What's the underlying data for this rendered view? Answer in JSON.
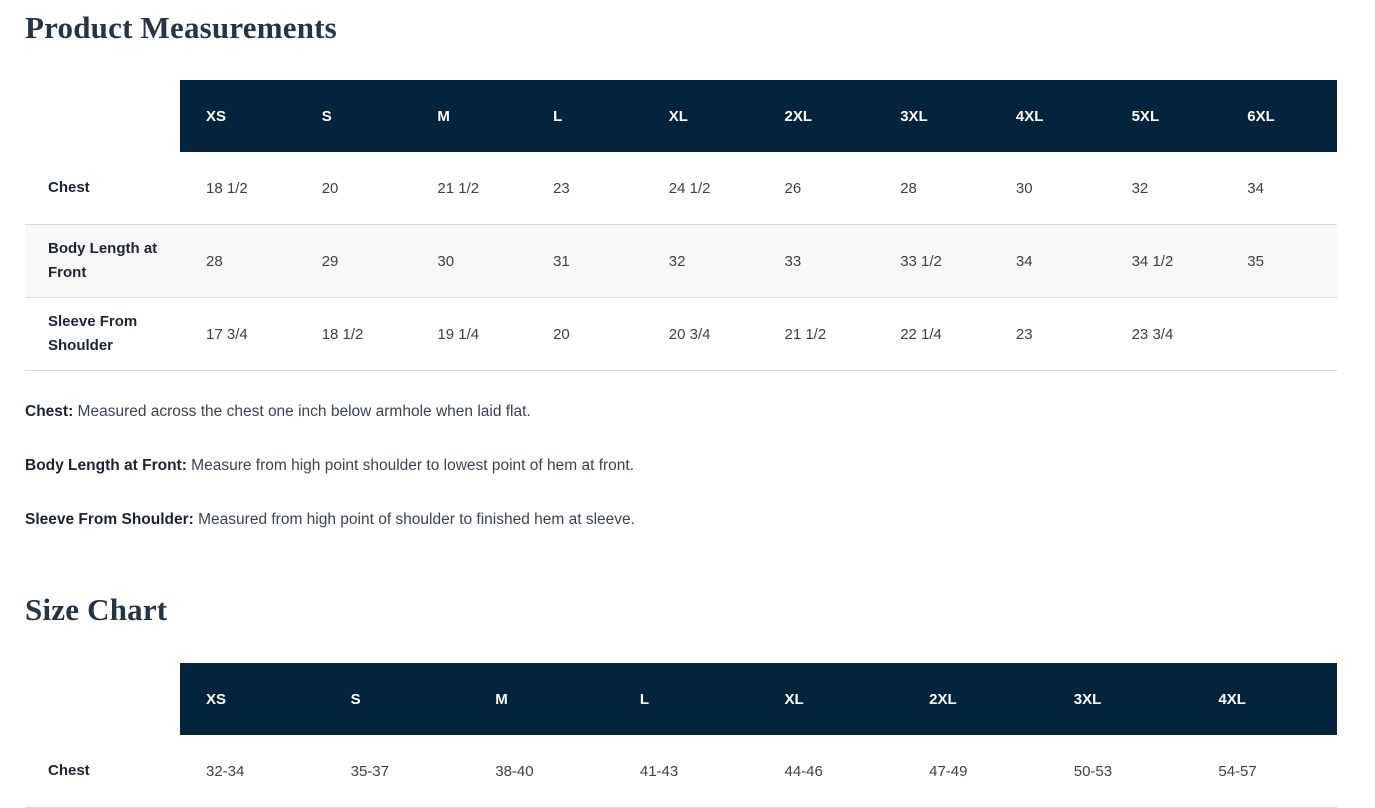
{
  "page": {
    "measurements_title": "Product Measurements",
    "size_chart_title": "Size Chart"
  },
  "colors": {
    "header_bg": "#03243a",
    "header_text": "#ffffff",
    "stripe_bg": "#f8f8f8",
    "row_border": "#d9d9d9",
    "title_text": "#263443"
  },
  "measurements_table": {
    "sizes": [
      "XS",
      "S",
      "M",
      "L",
      "XL",
      "2XL",
      "3XL",
      "4XL",
      "5XL",
      "6XL"
    ],
    "rows": [
      {
        "label": "Chest",
        "values": [
          "18 1/2",
          "20",
          "21 1/2",
          "23",
          "24 1/2",
          "26",
          "28",
          "30",
          "32",
          "34"
        ]
      },
      {
        "label": "Body Length at Front",
        "values": [
          "28",
          "29",
          "30",
          "31",
          "32",
          "33",
          "33 1/2",
          "34",
          "34 1/2",
          "35"
        ]
      },
      {
        "label": "Sleeve From Shoulder",
        "values": [
          "17 3/4",
          "18 1/2",
          "19 1/4",
          "20",
          "20 3/4",
          "21 1/2",
          "22 1/4",
          "23",
          "23 3/4",
          ""
        ]
      }
    ]
  },
  "notes": [
    {
      "term": "Chest:",
      "definition": " Measured across the chest one inch below armhole when laid flat."
    },
    {
      "term": "Body Length at Front:",
      "definition": " Measure from high point shoulder to lowest point of hem at front."
    },
    {
      "term": "Sleeve From Shoulder:",
      "definition": " Measured from high point of shoulder to finished hem at sleeve."
    }
  ],
  "size_chart_table": {
    "sizes": [
      "XS",
      "S",
      "M",
      "L",
      "XL",
      "2XL",
      "3XL",
      "4XL"
    ],
    "rows": [
      {
        "label": "Chest",
        "values": [
          "32-34",
          "35-37",
          "38-40",
          "41-43",
          "44-46",
          "47-49",
          "50-53",
          "54-57"
        ]
      }
    ]
  }
}
